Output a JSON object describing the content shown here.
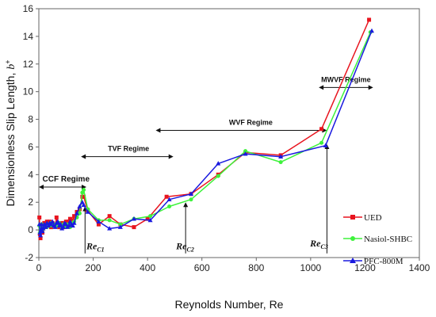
{
  "chart_data": {
    "type": "line",
    "xlabel": "Reynolds Number, Re",
    "ylabel": "Dimensionless Slip Length, ",
    "ylabel_symbol": "b",
    "ylabel_sup": "+",
    "xlim": [
      0,
      1400
    ],
    "ylim": [
      -2,
      16
    ],
    "x_ticks": [
      0,
      200,
      400,
      600,
      800,
      1000,
      1200,
      1400
    ],
    "y_ticks": [
      -2,
      0,
      2,
      4,
      6,
      8,
      10,
      12,
      14,
      16
    ],
    "x_tick_labels": [
      "0",
      "200",
      "400",
      "600",
      "800",
      "1000",
      "1200",
      "1400"
    ],
    "y_tick_labels": [
      "-2",
      "0",
      "2",
      "4",
      "6",
      "8",
      "10",
      "12",
      "14",
      "16"
    ],
    "grid": false,
    "legend_position": "right",
    "series": [
      {
        "name": "UED",
        "color": "#e8141e",
        "marker": "square",
        "x": [
          2,
          4,
          6,
          8,
          10,
          13,
          16,
          20,
          25,
          30,
          35,
          40,
          45,
          50,
          55,
          60,
          65,
          70,
          75,
          80,
          85,
          90,
          95,
          100,
          105,
          110,
          115,
          120,
          125,
          130,
          140,
          150,
          160,
          165,
          180,
          220,
          260,
          300,
          350,
          400,
          470,
          560,
          660,
          760,
          890,
          1040,
          1215
        ],
        "y": [
          0.9,
          -0.3,
          -0.6,
          0.1,
          0.3,
          -0.2,
          0.2,
          0.5,
          0.3,
          0.6,
          0.4,
          0.6,
          0.2,
          0.5,
          0.4,
          0.3,
          0.9,
          0.4,
          0.2,
          0.4,
          0.5,
          0.2,
          0.3,
          0.6,
          0.3,
          0.6,
          0.8,
          0.5,
          0.7,
          1.0,
          1.3,
          1.5,
          2.4,
          2.4,
          1.4,
          0.4,
          1.0,
          0.4,
          0.2,
          0.8,
          2.4,
          2.6,
          4.0,
          5.6,
          5.4,
          7.3,
          15.2
        ]
      },
      {
        "name": "Nasiol-SHBC",
        "color": "#3ef23c",
        "marker": "circle",
        "x": [
          2,
          4,
          6,
          8,
          10,
          13,
          16,
          20,
          25,
          30,
          35,
          40,
          45,
          50,
          55,
          60,
          65,
          70,
          75,
          80,
          85,
          90,
          95,
          100,
          105,
          110,
          115,
          120,
          125,
          130,
          140,
          150,
          160,
          165,
          180,
          220,
          260,
          300,
          350,
          410,
          480,
          560,
          660,
          760,
          890,
          1040,
          1220
        ],
        "y": [
          0.3,
          -0.2,
          0.1,
          0.2,
          0.4,
          0.0,
          0.3,
          0.3,
          0.2,
          0.2,
          0.4,
          0.3,
          0.5,
          0.3,
          0.4,
          0.4,
          0.3,
          0.3,
          0.5,
          0.3,
          0.2,
          0.4,
          0.3,
          0.2,
          0.4,
          0.3,
          0.2,
          0.4,
          0.5,
          0.6,
          0.9,
          1.2,
          2.7,
          2.9,
          1.5,
          0.7,
          0.7,
          0.4,
          0.8,
          1.0,
          1.7,
          2.2,
          3.9,
          5.7,
          4.9,
          6.3,
          14.3
        ]
      },
      {
        "name": "PFC-800M",
        "color": "#1a1adf",
        "marker": "triangle",
        "x": [
          2,
          4,
          6,
          8,
          10,
          13,
          16,
          20,
          25,
          30,
          35,
          40,
          45,
          50,
          55,
          60,
          65,
          70,
          75,
          80,
          85,
          90,
          95,
          100,
          105,
          110,
          115,
          120,
          125,
          130,
          140,
          150,
          160,
          165,
          180,
          220,
          260,
          300,
          350,
          410,
          480,
          560,
          660,
          760,
          890,
          1055,
          1225
        ],
        "y": [
          0.4,
          -0.2,
          -0.4,
          0.0,
          0.4,
          -0.1,
          0.1,
          0.4,
          0.2,
          0.5,
          0.3,
          0.5,
          0.4,
          0.6,
          0.3,
          0.2,
          0.5,
          0.6,
          0.3,
          0.4,
          0.1,
          0.2,
          0.5,
          0.4,
          0.2,
          0.3,
          0.6,
          0.4,
          0.3,
          0.5,
          1.2,
          1.7,
          2.0,
          1.8,
          1.3,
          0.6,
          0.1,
          0.2,
          0.8,
          0.7,
          2.2,
          2.6,
          4.8,
          5.5,
          5.3,
          6.1,
          14.4
        ]
      }
    ],
    "annotations": {
      "regimes": [
        {
          "label": "CCF Regime",
          "x_from": 0,
          "x_to": 175,
          "y": 3.1,
          "text_x": 100,
          "text_y": 3.5,
          "size": "large"
        },
        {
          "label": "TVF Regime",
          "x_from": 155,
          "x_to": 495,
          "y": 5.3,
          "text_x": 330,
          "text_y": 5.7,
          "size": "small"
        },
        {
          "label": "WVF Regime",
          "x_from": 430,
          "x_to": 1060,
          "y": 7.2,
          "text_x": 780,
          "text_y": 7.6,
          "size": "small"
        },
        {
          "label": "MWVF Regime",
          "x_from": 1030,
          "x_to": 1230,
          "y": 10.3,
          "text_x": 1130,
          "text_y": 10.7,
          "size": "small"
        }
      ],
      "critical_re": [
        {
          "label": "Re",
          "sub": "C1",
          "x": 170,
          "y_from": -1.7,
          "y_to": 1.7,
          "text_x": 175,
          "text_y": -1.4
        },
        {
          "label": "Re",
          "sub": "C2",
          "x": 540,
          "y_from": -1.7,
          "y_to": 2.0,
          "text_x": 505,
          "text_y": -1.4
        },
        {
          "label": "Re",
          "sub": "C3",
          "x": 1060,
          "y_from": -1.7,
          "y_to": 6.2,
          "text_x": 998,
          "text_y": -1.2
        }
      ]
    }
  }
}
